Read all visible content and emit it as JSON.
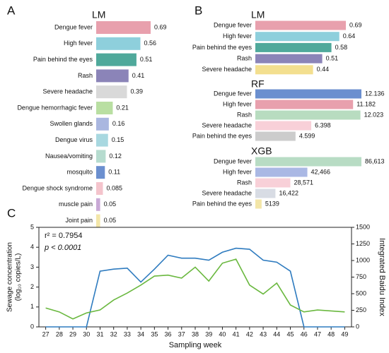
{
  "chart_data": [
    {
      "type": "barh",
      "panel": "A",
      "title": "LM",
      "categories": [
        "Dengue fever",
        "High fever",
        "Pain behind the eyes",
        "Rash",
        "Severe headache",
        "Dengue hemorrhagic fever",
        "Swollen glands",
        "Dengue virus",
        "Nausea/vomiting",
        "mosquito",
        "Dengue shock syndrome",
        "muscle pain",
        "Joint pain"
      ],
      "values": [
        0.69,
        0.56,
        0.51,
        0.41,
        0.39,
        0.21,
        0.16,
        0.15,
        0.12,
        0.11,
        0.085,
        0.05,
        0.05
      ],
      "colors": [
        "#e8a0ad",
        "#8ecfdc",
        "#4fa99b",
        "#8b84b8",
        "#d9d9d9",
        "#b9dfa2",
        "#aab7e0",
        "#a8d8e0",
        "#b6dccf",
        "#6b8fcf",
        "#f4c4cc",
        "#c9a9d6",
        "#f3e6a8"
      ]
    },
    {
      "type": "barh",
      "panel": "B",
      "title": "LM",
      "categories": [
        "Dengue fever",
        "High fever",
        "Pain behind the eyes",
        "Rash",
        "Severe headache"
      ],
      "values": [
        0.69,
        0.64,
        0.58,
        0.51,
        0.44
      ],
      "colors": [
        "#e8a0ad",
        "#8ecfdc",
        "#4fa99b",
        "#8b84b8",
        "#f3df8f"
      ]
    },
    {
      "type": "barh",
      "title": "RF",
      "categories": [
        "Dengue fever",
        "High fever",
        "Rash",
        "Severe headache",
        "Pain behind the eyes"
      ],
      "values": [
        12.136,
        11.182,
        12.023,
        6.398,
        4.599
      ],
      "colors": [
        "#6b8fcf",
        "#e8a0ad",
        "#b8dcc0",
        "#f8d0d8",
        "#cccccc"
      ]
    },
    {
      "type": "barh",
      "title": "XGB",
      "categories": [
        "Dengue fever",
        "High fever",
        "Rash",
        "Severe headache",
        "Pain behind the eyes"
      ],
      "values": [
        86613,
        42466,
        28571,
        16422,
        5139
      ],
      "value_labels": [
        "86,613",
        "42,466",
        "28,571",
        "16,422",
        "5139"
      ],
      "colors": [
        "#b8dcc4",
        "#aab8e4",
        "#f8d0d8",
        "#d8dce4",
        "#f3e6a8"
      ]
    },
    {
      "type": "line",
      "panel": "C",
      "xlabel": "Sampling week",
      "ylabel": [
        "Sewage concentration",
        "(log₁₀ copies/L)"
      ],
      "y2label": "Integrated Baidu Index",
      "annotations": [
        "r² = 0.7954",
        "p < 0.0001"
      ],
      "x": [
        27,
        28,
        29,
        30,
        31,
        32,
        33,
        34,
        35,
        36,
        37,
        38,
        39,
        40,
        41,
        42,
        43,
        44,
        45,
        46,
        47,
        48,
        49
      ],
      "xlim": [
        26.5,
        49.5
      ],
      "xticks": [
        27,
        28,
        29,
        30,
        31,
        32,
        33,
        34,
        35,
        36,
        37,
        38,
        39,
        40,
        41,
        42,
        43,
        44,
        45,
        46,
        47,
        48,
        49
      ],
      "ylim": [
        0,
        5
      ],
      "yticks": [
        0,
        1,
        2,
        3,
        4,
        5
      ],
      "y2lim": [
        0,
        1500
      ],
      "y2ticks": [
        0,
        250,
        500,
        750,
        1000,
        1250,
        1500
      ],
      "series": [
        {
          "name": "Sewage concentration",
          "color": "#2e7bbf",
          "values": [
            0,
            0,
            0,
            0,
            2.8,
            2.9,
            2.95,
            2.25,
            2.9,
            3.6,
            3.45,
            3.45,
            3.35,
            3.75,
            3.95,
            3.9,
            3.35,
            3.25,
            2.8,
            0,
            0,
            0,
            0
          ]
        },
        {
          "name": "Integrated Baidu Index",
          "color": "#6ab83f",
          "axis": "y2",
          "values": [
            285,
            225,
            120,
            210,
            255,
            405,
            510,
            630,
            765,
            780,
            735,
            900,
            690,
            960,
            1020,
            630,
            495,
            660,
            330,
            225,
            255,
            240,
            225
          ]
        }
      ]
    }
  ]
}
